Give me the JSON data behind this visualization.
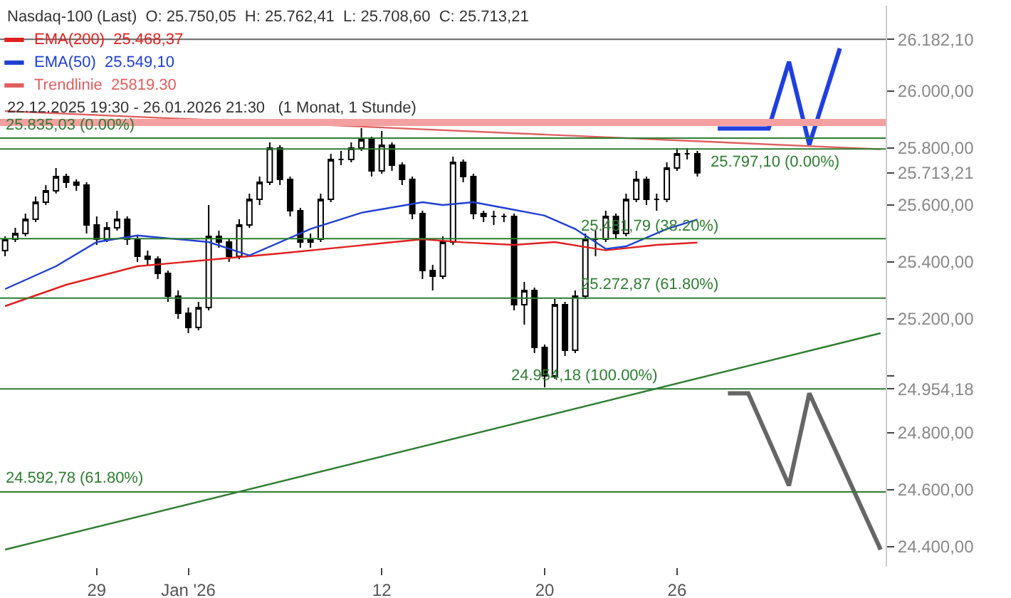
{
  "chart_data": {
    "type": "candlestick",
    "annotations": [
      "Nasdaq-100 (Last)  O: 25.750,05  H: 25.762,41  L: 25.708,60  C: 25.713,21",
      "22.12.2025 19:30 - 26.01.2026 21:30   (1 Monat, 1 Stunde)"
    ],
    "categories": [
      null,
      null,
      null,
      null,
      null,
      null,
      null,
      null,
      null,
      "29",
      null,
      null,
      null,
      null,
      null,
      null,
      null,
      null,
      "Jan '26",
      null,
      null,
      null,
      null,
      null,
      null,
      null,
      null,
      null,
      null,
      null,
      null,
      null,
      null,
      null,
      null,
      null,
      null,
      "12",
      null,
      null,
      null,
      null,
      null,
      null,
      null,
      null,
      null,
      null,
      null,
      null,
      null,
      null,
      null,
      "20",
      null,
      null,
      null,
      null,
      null,
      null,
      null,
      null,
      null,
      null,
      null,
      null,
      "26",
      null,
      null,
      null,
      null,
      null,
      null,
      null,
      null,
      null,
      null,
      null,
      null,
      null,
      null,
      null,
      null,
      null,
      null,
      null,
      null
    ],
    "ohlc": [
      [
        25440,
        25490,
        25420,
        25480
      ],
      [
        25480,
        25520,
        25470,
        25500
      ],
      [
        25500,
        25570,
        25490,
        25550
      ],
      [
        25550,
        25630,
        25540,
        25610
      ],
      [
        25610,
        25670,
        25600,
        25650
      ],
      [
        25650,
        25730,
        25640,
        25700
      ],
      [
        25700,
        25710,
        25660,
        25680
      ],
      [
        25680,
        25690,
        25650,
        25670
      ],
      [
        25670,
        25680,
        25500,
        25530
      ],
      [
        25530,
        25560,
        25460,
        25480
      ],
      [
        25480,
        25540,
        25470,
        25520
      ],
      [
        25520,
        25580,
        25510,
        25550
      ],
      [
        25550,
        25560,
        25460,
        25480
      ],
      [
        25480,
        25490,
        25400,
        25420
      ],
      [
        25420,
        25440,
        25390,
        25410
      ],
      [
        25410,
        25420,
        25340,
        25360
      ],
      [
        25360,
        25370,
        25260,
        25280
      ],
      [
        25280,
        25300,
        25200,
        25220
      ],
      [
        25220,
        25240,
        25150,
        25170
      ],
      [
        25170,
        25260,
        25160,
        25240
      ],
      [
        25240,
        25600,
        25230,
        25490
      ],
      [
        25490,
        25510,
        25450,
        25470
      ],
      [
        25470,
        25480,
        25400,
        25420
      ],
      [
        25420,
        25550,
        25410,
        25530
      ],
      [
        25530,
        25640,
        25520,
        25620
      ],
      [
        25620,
        25700,
        25600,
        25680
      ],
      [
        25680,
        25820,
        25670,
        25800
      ],
      [
        25800,
        25810,
        25670,
        25690
      ],
      [
        25690,
        25700,
        25560,
        25580
      ],
      [
        25580,
        25590,
        25450,
        25470
      ],
      [
        25470,
        25500,
        25450,
        25480
      ],
      [
        25480,
        25640,
        25470,
        25620
      ],
      [
        25620,
        25780,
        25610,
        25760
      ],
      [
        25760,
        25790,
        25740,
        25760
      ],
      [
        25760,
        25820,
        25750,
        25800
      ],
      [
        25800,
        25870,
        25790,
        25830
      ],
      [
        25830,
        25840,
        25700,
        25720
      ],
      [
        25720,
        25860,
        25710,
        25810
      ],
      [
        25810,
        25820,
        25720,
        25740
      ],
      [
        25740,
        25750,
        25670,
        25690
      ],
      [
        25690,
        25700,
        25550,
        25570
      ],
      [
        25570,
        25580,
        25340,
        25370
      ],
      [
        25370,
        25390,
        25300,
        25350
      ],
      [
        25350,
        25490,
        25340,
        25470
      ],
      [
        25470,
        25770,
        25460,
        25750
      ],
      [
        25750,
        25760,
        25680,
        25700
      ],
      [
        25700,
        25710,
        25550,
        25570
      ],
      [
        25570,
        25580,
        25540,
        25560
      ],
      [
        25560,
        25580,
        25530,
        25560
      ],
      [
        25560,
        25570,
        25540,
        25560
      ],
      [
        25560,
        25570,
        25230,
        25250
      ],
      [
        25250,
        25330,
        25180,
        25300
      ],
      [
        25300,
        25310,
        25080,
        25100
      ],
      [
        25100,
        25110,
        24960,
        25000
      ],
      [
        25000,
        25270,
        24990,
        25250
      ],
      [
        25250,
        25260,
        25070,
        25090
      ],
      [
        25090,
        25300,
        25080,
        25280
      ],
      [
        25280,
        25500,
        25270,
        25480
      ],
      [
        25480,
        25510,
        25420,
        25480
      ],
      [
        25480,
        25580,
        25470,
        25560
      ],
      [
        25560,
        25570,
        25480,
        25500
      ],
      [
        25500,
        25640,
        25490,
        25620
      ],
      [
        25620,
        25720,
        25610,
        25690
      ],
      [
        25690,
        25700,
        25600,
        25620
      ],
      [
        25620,
        25640,
        25580,
        25620
      ],
      [
        25620,
        25750,
        25610,
        25730
      ],
      [
        25730,
        25800,
        25720,
        25780
      ],
      [
        25780,
        25800,
        25760,
        25780
      ],
      [
        25780,
        25790,
        25700,
        25713.21
      ],
      null,
      null,
      null,
      null,
      null,
      null,
      null,
      null,
      null,
      null,
      null,
      null,
      null,
      null,
      null,
      null,
      null,
      null
    ],
    "series": [
      {
        "name": "EMA(200)  25.468,37",
        "color": "#e0201f",
        "type": "line",
        "values": [
          25245,
          null,
          null,
          null,
          null,
          null,
          25320,
          null,
          null,
          null,
          null,
          null,
          null,
          25385,
          null,
          null,
          null,
          null,
          null,
          null,
          null,
          null,
          null,
          null,
          null,
          null,
          null,
          25430,
          null,
          null,
          null,
          null,
          null,
          null,
          null,
          null,
          null,
          null,
          null,
          null,
          null,
          25480,
          null,
          null,
          null,
          25469,
          null,
          null,
          null,
          null,
          25460,
          null,
          null,
          null,
          25470,
          null,
          null,
          null,
          null,
          25441,
          null,
          null,
          null,
          null,
          25460,
          null,
          null,
          null,
          25468,
          null,
          null,
          null,
          null,
          null,
          null,
          null,
          null,
          null,
          null,
          null,
          null,
          null,
          null,
          null,
          null,
          null,
          null
        ]
      },
      {
        "name": "EMA(50)  25.549,10",
        "color": "#2040d0",
        "type": "line",
        "values": [
          25305,
          null,
          null,
          null,
          null,
          25385,
          null,
          null,
          null,
          25470,
          null,
          null,
          null,
          25493,
          null,
          null,
          null,
          null,
          null,
          null,
          25470,
          null,
          null,
          null,
          25423,
          null,
          null,
          null,
          null,
          null,
          25516,
          null,
          null,
          null,
          null,
          25573,
          null,
          null,
          null,
          null,
          null,
          25610,
          null,
          25600,
          null,
          null,
          25610,
          null,
          null,
          25590,
          null,
          null,
          null,
          25563,
          null,
          null,
          25516,
          null,
          null,
          25446,
          null,
          25455,
          null,
          null,
          null,
          25516,
          null,
          null,
          25549,
          null,
          null,
          null,
          null,
          null,
          null,
          null,
          null,
          null,
          null,
          null,
          null,
          null,
          null,
          null,
          null,
          null,
          null
        ]
      },
      {
        "name": "Trendlinie  25819.30",
        "color": "#e0605f",
        "type": "line",
        "values": [
          25930,
          null,
          null,
          null,
          null,
          null,
          null,
          null,
          null,
          null,
          null,
          null,
          null,
          null,
          null,
          null,
          null,
          null,
          null,
          null,
          null,
          null,
          null,
          null,
          null,
          null,
          null,
          null,
          null,
          null,
          null,
          null,
          null,
          null,
          null,
          null,
          null,
          null,
          null,
          null,
          null,
          null,
          null,
          null,
          null,
          null,
          null,
          null,
          null,
          null,
          null,
          null,
          null,
          null,
          null,
          null,
          null,
          null,
          null,
          null,
          null,
          null,
          null,
          null,
          null,
          null,
          null,
          null,
          null,
          null,
          null,
          null,
          null,
          null,
          null,
          null,
          null,
          null,
          null,
          null,
          null,
          null,
          null,
          null,
          null,
          null,
          25796
        ]
      },
      {
        "color": "#2e7d32",
        "type": "line",
        "values": [
          24390,
          null,
          null,
          null,
          null,
          null,
          null,
          null,
          null,
          null,
          null,
          null,
          null,
          null,
          null,
          null,
          null,
          null,
          null,
          null,
          null,
          null,
          null,
          null,
          null,
          null,
          null,
          null,
          null,
          null,
          null,
          null,
          null,
          null,
          null,
          null,
          null,
          null,
          null,
          null,
          null,
          null,
          null,
          null,
          null,
          null,
          null,
          null,
          null,
          null,
          null,
          null,
          null,
          null,
          null,
          null,
          null,
          null,
          null,
          null,
          null,
          null,
          null,
          null,
          null,
          null,
          null,
          null,
          null,
          null,
          null,
          null,
          null,
          null,
          null,
          null,
          null,
          null,
          null,
          null,
          null,
          null,
          null,
          null,
          null,
          null,
          25150
        ]
      },
      {
        "color": "#1f3fe0",
        "type": "line",
        "values": [
          null,
          null,
          null,
          null,
          null,
          null,
          null,
          null,
          null,
          null,
          null,
          null,
          null,
          null,
          null,
          null,
          null,
          null,
          null,
          null,
          null,
          null,
          null,
          null,
          null,
          null,
          null,
          null,
          null,
          null,
          null,
          null,
          null,
          null,
          null,
          null,
          null,
          null,
          null,
          null,
          null,
          null,
          null,
          null,
          null,
          null,
          null,
          null,
          null,
          null,
          null,
          null,
          null,
          null,
          null,
          null,
          null,
          null,
          null,
          null,
          null,
          null,
          null,
          null,
          null,
          null,
          null,
          null,
          null,
          null,
          25869,
          null,
          null,
          null,
          null,
          25869,
          null,
          26103,
          null,
          25812,
          null,
          null,
          26150,
          null,
          null,
          null,
          null
        ]
      },
      {
        "color": "#666666",
        "type": "line",
        "values": [
          null,
          null,
          null,
          null,
          null,
          null,
          null,
          null,
          null,
          null,
          null,
          null,
          null,
          null,
          null,
          null,
          null,
          null,
          null,
          null,
          null,
          null,
          null,
          null,
          null,
          null,
          null,
          null,
          null,
          null,
          null,
          null,
          null,
          null,
          null,
          null,
          null,
          null,
          null,
          null,
          null,
          null,
          null,
          null,
          null,
          null,
          null,
          null,
          null,
          null,
          null,
          null,
          null,
          null,
          null,
          null,
          null,
          null,
          null,
          null,
          null,
          null,
          null,
          null,
          null,
          null,
          null,
          null,
          null,
          null,
          null,
          24939,
          null,
          24939,
          null,
          null,
          null,
          24615,
          null,
          24939,
          null,
          null,
          null,
          null,
          null,
          null,
          24390
        ]
      }
    ],
    "ref_lines": [
      {
        "axis": "y",
        "value": 26182.1,
        "color": "#666666"
      },
      {
        "axis": "y",
        "value": 25890,
        "color": "#f4a0a0"
      },
      {
        "axis": "y",
        "value": 25835.03,
        "label": "25.835,03 (0.00%)",
        "color": "#2e7d32"
      },
      {
        "axis": "y",
        "value": 25797.1,
        "label": "25.797,10 (0.00%)",
        "color": "#2e7d32"
      },
      {
        "axis": "y",
        "value": 25481.79,
        "label": "25.481,79 (38.20%)",
        "color": "#2e7d32"
      },
      {
        "axis": "y",
        "value": 25272.87,
        "label": "25.272,87 (61.80%)",
        "color": "#2e7d32"
      },
      {
        "axis": "y",
        "value": 24954.18,
        "label": "24.954,18 (100.00%)",
        "color": "#2e7d32"
      },
      {
        "axis": "y",
        "value": 24592.78,
        "label": "24.592,78 (61.80%)",
        "color": "#2e7d32"
      }
    ],
    "ylim": [
      24330,
      26300
    ],
    "yticks": [
      {
        "value": 24400,
        "label": "24.400,00"
      },
      {
        "value": 24600,
        "label": "24.600,00"
      },
      {
        "value": 24800,
        "label": "24.800,00"
      },
      {
        "value": 24954.18,
        "label": "24.954,18"
      },
      {
        "value": 25000,
        "label": null
      },
      {
        "value": 25200,
        "label": "25.200,00"
      },
      {
        "value": 25400,
        "label": "25.400,00"
      },
      {
        "value": 25600,
        "label": "25.600,00"
      },
      {
        "value": 25713.21,
        "label": "25.713,21"
      },
      {
        "value": 25800,
        "label": "25.800,00"
      },
      {
        "value": 26000,
        "label": "26.000,00"
      },
      {
        "value": 26182.1,
        "label": "26.182,10"
      }
    ],
    "legend": "top left"
  }
}
